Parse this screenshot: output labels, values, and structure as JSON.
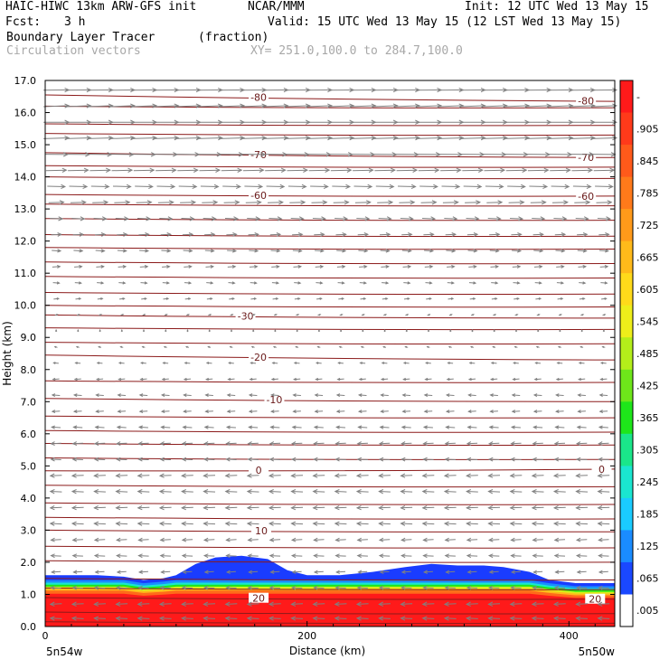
{
  "header": {
    "model": "HAIC-HIWC 13km ARW-GFS init",
    "org": "NCAR/MMM",
    "init": "Init: 12 UTC Wed 13 May 15",
    "fcst_label": "Fcst:",
    "fcst_value": "3 h",
    "valid": "Valid: 15 UTC Wed 13 May 15 (12 LST Wed 13 May 15)",
    "field_name": "Boundary Layer Tracer",
    "field_unit": "(fraction)",
    "vector_label": "Circulation vectors",
    "xy_label": "XY= 251.0,100.0 to 284.7,100.0"
  },
  "chart_data": {
    "type": "heatmap",
    "title": "Boundary Layer Tracer (fraction)",
    "xlabel": "Distance (km)",
    "ylabel": "Height (km)",
    "xlim": [
      0,
      435
    ],
    "ylim": [
      0,
      17
    ],
    "x_ticks": [
      {
        "v": 0,
        "label": "0"
      },
      {
        "v": 200,
        "label": "200"
      },
      {
        "v": 400,
        "label": "400"
      }
    ],
    "y_ticks": [
      "0.0",
      "1.0",
      "2.0",
      "3.0",
      "4.0",
      "5.0",
      "6.0",
      "7.0",
      "8.0",
      "9.0",
      "10.0",
      "11.0",
      "12.0",
      "13.0",
      "14.0",
      "15.0",
      "16.0",
      "17.0"
    ],
    "endpoint_left": "5n54w",
    "endpoint_right": "5n50w",
    "colorbar": {
      "labels": [
        "-",
        ".905",
        ".845",
        ".785",
        ".725",
        ".665",
        ".605",
        ".545",
        ".485",
        ".425",
        ".365",
        ".305",
        ".245",
        ".185",
        ".125",
        ".065",
        ".005"
      ],
      "colors": [
        "#ff1a1a",
        "#ff3a1a",
        "#ff5a1a",
        "#ff7a1a",
        "#ff9a1a",
        "#ffba1a",
        "#ffda1a",
        "#eeee1a",
        "#b4ee1a",
        "#6ee61a",
        "#1ee61a",
        "#1ae68a",
        "#1ae6d0",
        "#1acbff",
        "#1a8cff",
        "#1a48ff",
        "#ffffff"
      ]
    },
    "tracer_profile": [
      [
        0,
        1.6
      ],
      [
        20,
        1.6
      ],
      [
        40,
        1.6
      ],
      [
        60,
        1.55
      ],
      [
        75,
        1.45
      ],
      [
        90,
        1.5
      ],
      [
        100,
        1.6
      ],
      [
        115,
        1.95
      ],
      [
        130,
        2.15
      ],
      [
        150,
        2.2
      ],
      [
        170,
        2.1
      ],
      [
        185,
        1.75
      ],
      [
        200,
        1.6
      ],
      [
        225,
        1.6
      ],
      [
        250,
        1.7
      ],
      [
        275,
        1.85
      ],
      [
        295,
        1.95
      ],
      [
        315,
        1.9
      ],
      [
        335,
        1.9
      ],
      [
        350,
        1.85
      ],
      [
        370,
        1.7
      ],
      [
        385,
        1.45
      ],
      [
        405,
        1.35
      ],
      [
        435,
        1.35
      ]
    ],
    "temperature_contours": [
      {
        "label": "-80",
        "y_left": 16.55,
        "y_right": 16.35,
        "label_x": [
          163,
          413
        ]
      },
      {
        "label": "-70",
        "y_left": 14.75,
        "y_right": 14.6,
        "label_x": [
          163,
          413
        ]
      },
      {
        "label": "-60",
        "y_left": 13.45,
        "y_right": 13.4,
        "label_x": [
          163,
          413
        ]
      },
      {
        "label": "-30",
        "y_left": 9.7,
        "y_right": 9.6,
        "label_x": [
          153
        ]
      },
      {
        "label": "-20",
        "y_left": 8.45,
        "y_right": 8.3,
        "label_x": [
          163
        ]
      },
      {
        "label": "-10",
        "y_left": 7.1,
        "y_right": 7.0,
        "label_x": [
          175
        ]
      },
      {
        "label": "0",
        "y_left": 4.85,
        "y_right": 4.9,
        "label_x": [
          163,
          425
        ]
      },
      {
        "label": "10",
        "y_left": 3.0,
        "y_right": 2.95,
        "label_x": [
          165
        ]
      },
      {
        "label": "20",
        "y_left": 0.9,
        "y_right": 0.85,
        "label_x": [
          163,
          420
        ]
      }
    ],
    "extra_contour_heights": [
      16.2,
      15.65,
      15.35,
      14.35,
      14.0,
      13.15,
      12.7,
      12.2,
      11.8,
      11.35,
      10.9,
      10.4,
      10.0,
      9.3,
      8.85,
      7.65,
      6.55,
      6.1,
      5.7,
      5.25,
      4.4,
      3.85,
      3.4,
      2.5,
      2.05,
      1.5,
      1.2,
      0.45,
      0.15
    ],
    "vectors": {
      "columns": 26,
      "levels": [
        {
          "y": 16.7,
          "u": 1.0,
          "w": 0.03
        },
        {
          "y": 16.2,
          "u": 1.0,
          "w": 0.02
        },
        {
          "y": 15.7,
          "u": 1.0,
          "w": 0.02
        },
        {
          "y": 15.2,
          "u": 1.0,
          "w": 0.01
        },
        {
          "y": 14.7,
          "u": 0.9,
          "w": 0.01
        },
        {
          "y": 14.2,
          "u": 0.8,
          "w": 0.0
        },
        {
          "y": 13.7,
          "u": 0.7,
          "w": 0.0
        },
        {
          "y": 13.2,
          "u": 0.6,
          "w": 0.0
        },
        {
          "y": 12.7,
          "u": 0.5,
          "w": 0.0
        },
        {
          "y": 12.2,
          "u": 0.4,
          "w": 0.0
        },
        {
          "y": 11.7,
          "u": 0.35,
          "w": 0.0
        },
        {
          "y": 11.2,
          "u": 0.3,
          "w": 0.0
        },
        {
          "y": 10.7,
          "u": 0.25,
          "w": 0.0
        },
        {
          "y": 10.2,
          "u": 0.2,
          "w": 0.0
        },
        {
          "y": 9.7,
          "u": 0.1,
          "w": 0.05
        },
        {
          "y": 9.2,
          "u": 0.0,
          "w": 0.05
        },
        {
          "y": 8.7,
          "u": -0.1,
          "w": 0.05
        },
        {
          "y": 8.2,
          "u": -0.2,
          "w": 0.0
        },
        {
          "y": 7.7,
          "u": -0.25,
          "w": 0.0
        },
        {
          "y": 7.2,
          "u": -0.3,
          "w": 0.0
        },
        {
          "y": 6.7,
          "u": -0.3,
          "w": 0.0
        },
        {
          "y": 6.2,
          "u": -0.35,
          "w": 0.0
        },
        {
          "y": 5.7,
          "u": -0.4,
          "w": 0.0
        },
        {
          "y": 5.2,
          "u": -0.4,
          "w": 0.0
        },
        {
          "y": 4.7,
          "u": -0.45,
          "w": 0.0
        },
        {
          "y": 4.2,
          "u": -0.45,
          "w": 0.0
        },
        {
          "y": 3.7,
          "u": -0.45,
          "w": 0.0
        },
        {
          "y": 3.2,
          "u": -0.45,
          "w": 0.0
        },
        {
          "y": 2.7,
          "u": -0.4,
          "w": 0.0
        },
        {
          "y": 2.2,
          "u": -0.4,
          "w": 0.0
        },
        {
          "y": 1.7,
          "u": -0.35,
          "w": 0.0
        },
        {
          "y": 1.2,
          "u": -0.4,
          "w": 0.0
        },
        {
          "y": 0.7,
          "u": -0.45,
          "w": 0.0
        },
        {
          "y": 0.25,
          "u": -0.45,
          "w": 0.0
        }
      ]
    },
    "colors": {
      "contour": "#8b1a1a",
      "vector": "#808080",
      "label": "#6a1a1a"
    },
    "grid": false,
    "legend": "right colorbar"
  }
}
